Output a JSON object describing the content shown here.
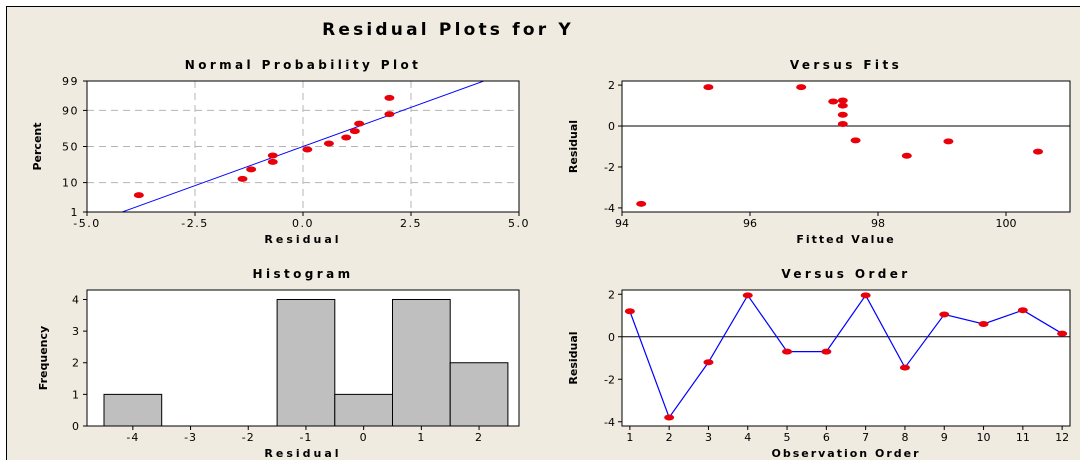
{
  "figure": {
    "title": "Residual Plots for Y"
  },
  "chart_data": [
    {
      "id": "npp",
      "type": "scatter",
      "title": "Normal Probability Plot",
      "xlabel": "Residual",
      "ylabel": "Percent",
      "xlim": [
        -5.0,
        5.0
      ],
      "xticks": [
        -5.0,
        -2.5,
        0.0,
        2.5,
        5.0
      ],
      "xtick_labels": [
        "-5.0",
        "-2.5",
        "0.0",
        "2.5",
        "5.0"
      ],
      "ylim": [
        1,
        99
      ],
      "yticks": [
        1,
        10,
        50,
        90,
        99
      ],
      "ytick_labels": [
        "1",
        "10",
        "50",
        "90",
        "99"
      ],
      "yscale": "normal-probability",
      "grid": true,
      "points": [
        {
          "x": -3.8,
          "y": 4.2
        },
        {
          "x": -1.4,
          "y": 12.5
        },
        {
          "x": -1.2,
          "y": 20.8
        },
        {
          "x": -0.7,
          "y": 29.2
        },
        {
          "x": -0.7,
          "y": 37.5
        },
        {
          "x": 0.1,
          "y": 45.8
        },
        {
          "x": 0.6,
          "y": 54.2
        },
        {
          "x": 1.0,
          "y": 62.5
        },
        {
          "x": 1.2,
          "y": 70.8
        },
        {
          "x": 1.3,
          "y": 79.2
        },
        {
          "x": 2.0,
          "y": 87.5
        },
        {
          "x": 2.0,
          "y": 95.8
        }
      ],
      "fit_line": {
        "mean": 0,
        "sd": 1.8
      },
      "point_color": "#e8000b",
      "line_color": "#0000ff"
    },
    {
      "id": "fits",
      "type": "scatter",
      "title": "Versus Fits",
      "xlabel": "Fitted Value",
      "ylabel": "Residual",
      "xlim": [
        94,
        101
      ],
      "xticks": [
        94,
        96,
        98,
        100
      ],
      "ylim": [
        -4.2,
        2.2
      ],
      "yticks": [
        -4,
        -2,
        0,
        2
      ],
      "reference_line": 0,
      "points": [
        {
          "x": 94.3,
          "y": -3.8
        },
        {
          "x": 95.35,
          "y": 1.9
        },
        {
          "x": 96.8,
          "y": 1.9
        },
        {
          "x": 97.3,
          "y": 1.2
        },
        {
          "x": 97.45,
          "y": 1.25
        },
        {
          "x": 97.45,
          "y": 1.0
        },
        {
          "x": 97.45,
          "y": 0.55
        },
        {
          "x": 97.45,
          "y": 0.1
        },
        {
          "x": 97.65,
          "y": -0.7
        },
        {
          "x": 98.45,
          "y": -1.45
        },
        {
          "x": 99.1,
          "y": -0.75
        },
        {
          "x": 100.5,
          "y": -1.25
        }
      ],
      "point_color": "#e8000b"
    },
    {
      "id": "hist",
      "type": "bar",
      "title": "Histogram",
      "xlabel": "Residual",
      "ylabel": "Frequency",
      "categories": [
        "-4",
        "-3",
        "-2",
        "-1",
        "0",
        "1",
        "2"
      ],
      "values": [
        1,
        0,
        0,
        4,
        1,
        4,
        2
      ],
      "ylim": [
        0,
        4.3
      ],
      "yticks": [
        0,
        1,
        2,
        3,
        4
      ],
      "bar_color": "#bfbfbf"
    },
    {
      "id": "order",
      "type": "line",
      "title": "Versus Order",
      "xlabel": "Observation Order",
      "ylabel": "Residual",
      "x": [
        1,
        2,
        3,
        4,
        5,
        6,
        7,
        8,
        9,
        10,
        11,
        12
      ],
      "values": [
        1.2,
        -3.8,
        -1.2,
        1.95,
        -0.7,
        -0.7,
        1.95,
        -1.45,
        1.05,
        0.6,
        1.25,
        0.15
      ],
      "xlim": [
        0.8,
        12.2
      ],
      "ylim": [
        -4.2,
        2.2
      ],
      "yticks": [
        -4,
        -2,
        0,
        2
      ],
      "reference_line": 0,
      "point_color": "#e8000b",
      "line_color": "#0000ff"
    }
  ]
}
